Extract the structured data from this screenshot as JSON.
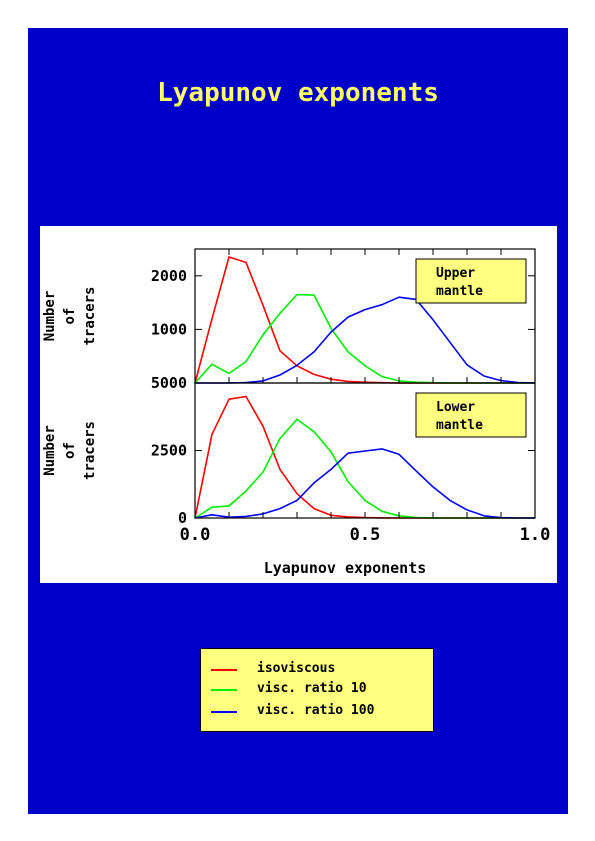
{
  "page": {
    "title": "Lyapunov exponents",
    "background": "#0000c8",
    "title_color": "#ffff66"
  },
  "chart_data": {
    "type": "line",
    "xlabel": "Lyapunov exponents",
    "xlim": [
      0.0,
      1.0
    ],
    "xticks": [
      "0.0",
      "0.5",
      "1.0"
    ],
    "x": [
      0.0,
      0.05,
      0.1,
      0.15,
      0.2,
      0.25,
      0.3,
      0.35,
      0.4,
      0.45,
      0.5,
      0.55,
      0.6,
      0.65,
      0.7,
      0.75,
      0.8,
      0.85,
      0.9,
      0.95,
      1.0
    ],
    "panels": [
      {
        "label": "Upper\nmantle",
        "label_lines": [
          "Upper",
          "mantle"
        ],
        "ylabel_lines": [
          "Number",
          "of",
          "tracers"
        ],
        "ylim": [
          0,
          2500
        ],
        "yticks": [
          {
            "value": 0,
            "label": "5000"
          },
          {
            "value": 1000,
            "label": "1000"
          },
          {
            "value": 2000,
            "label": "2000"
          }
        ],
        "series": [
          {
            "name": "isoviscous",
            "color": "#ff0000",
            "values": [
              0,
              1200,
              2350,
              2250,
              1450,
              600,
              320,
              160,
              70,
              30,
              15,
              5,
              0,
              0,
              0,
              0,
              0,
              0,
              0,
              0,
              0
            ]
          },
          {
            "name": "visc. ratio 10",
            "color": "#00ee00",
            "values": [
              0,
              350,
              180,
              400,
              900,
              1300,
              1650,
              1640,
              1020,
              580,
              320,
              120,
              40,
              15,
              5,
              0,
              0,
              0,
              0,
              0,
              0
            ]
          },
          {
            "name": "visc. ratio 100",
            "color": "#0000ff",
            "values": [
              0,
              0,
              0,
              10,
              40,
              150,
              330,
              580,
              950,
              1230,
              1370,
              1460,
              1600,
              1560,
              1180,
              760,
              340,
              130,
              45,
              10,
              0
            ]
          }
        ]
      },
      {
        "label": "Lower\nmantle",
        "label_lines": [
          "Lower",
          "mantle"
        ],
        "ylabel_lines": [
          "Number",
          "of",
          "tracers"
        ],
        "ylim": [
          0,
          5000
        ],
        "yticks": [
          {
            "value": 0,
            "label": "0"
          },
          {
            "value": 2500,
            "label": "2500"
          }
        ],
        "series": [
          {
            "name": "isoviscous",
            "color": "#ff0000",
            "values": [
              0,
              3100,
              4400,
              4500,
              3400,
              1800,
              900,
              350,
              100,
              40,
              15,
              5,
              0,
              0,
              0,
              0,
              0,
              0,
              0,
              0,
              0
            ]
          },
          {
            "name": "visc. ratio 10",
            "color": "#00ee00",
            "values": [
              0,
              400,
              450,
              1000,
              1700,
              2950,
              3650,
              3200,
              2450,
              1350,
              650,
              250,
              80,
              20,
              5,
              0,
              0,
              0,
              0,
              0,
              0
            ]
          },
          {
            "name": "visc. ratio 100",
            "color": "#0000ff",
            "values": [
              0,
              120,
              30,
              60,
              150,
              350,
              650,
              1300,
              1800,
              2400,
              2480,
              2560,
              2360,
              1750,
              1150,
              650,
              300,
              80,
              10,
              0,
              0
            ]
          }
        ]
      }
    ],
    "legend": {
      "placement": "bottom-center",
      "entries": [
        {
          "label": "isoviscous",
          "color": "#ff0000"
        },
        {
          "label": "visc. ratio 10",
          "color": "#00ee00"
        },
        {
          "label": "visc. ratio 100",
          "color": "#0000ff"
        }
      ]
    },
    "grid": false
  }
}
